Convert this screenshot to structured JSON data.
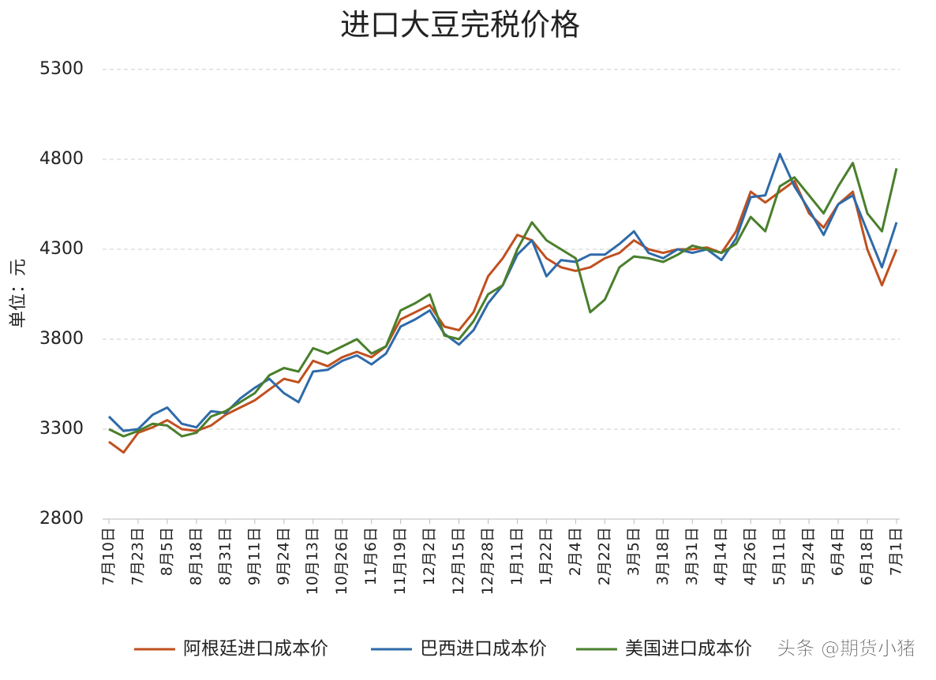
{
  "chart_data": {
    "type": "line",
    "title": "进口大豆完税价格",
    "y_label": "单位：元",
    "watermark": "头条 @期货小猪",
    "categories": [
      "7月10日",
      null,
      "7月23日",
      null,
      "8月5日",
      null,
      "8月18日",
      null,
      "8月31日",
      null,
      "9月11日",
      null,
      "9月24日",
      null,
      "10月13日",
      null,
      "10月26日",
      null,
      "11月6日",
      null,
      "11月19日",
      null,
      "12月2日",
      null,
      "12月15日",
      null,
      "12月28日",
      null,
      "1月11日",
      null,
      "1月22日",
      null,
      "2月4日",
      null,
      "2月22日",
      null,
      "3月5日",
      null,
      "3月18日",
      null,
      "3月31日",
      null,
      "4月14日",
      null,
      "4月26日",
      null,
      "5月11日",
      null,
      "5月24日",
      null,
      "6月4日",
      null,
      "6月18日",
      null,
      "7月1日"
    ],
    "series": [
      {
        "name": "阿根廷进口成本价",
        "color": "#c0501f",
        "values": [
          3230,
          3170,
          3280,
          3310,
          3350,
          3300,
          3290,
          3320,
          3380,
          3420,
          3460,
          3520,
          3580,
          3560,
          3680,
          3650,
          3700,
          3730,
          3700,
          3760,
          3910,
          3950,
          3990,
          3870,
          3850,
          3950,
          4150,
          4250,
          4380,
          4350,
          4250,
          4200,
          4180,
          4200,
          4250,
          4280,
          4350,
          4300,
          4280,
          4300,
          4300,
          4310,
          4280,
          4400,
          4620,
          4560,
          4620,
          4680,
          4500,
          4420,
          4550,
          4620,
          4300,
          4100,
          4300
        ]
      },
      {
        "name": "巴西进口成本价",
        "color": "#2e6aa9",
        "values": [
          3370,
          3290,
          3300,
          3380,
          3420,
          3330,
          3310,
          3400,
          3390,
          3470,
          3530,
          3580,
          3500,
          3450,
          3620,
          3630,
          3680,
          3710,
          3660,
          3720,
          3870,
          3910,
          3960,
          3830,
          3770,
          3850,
          4000,
          4100,
          4270,
          4350,
          4150,
          4240,
          4230,
          4270,
          4270,
          4330,
          4400,
          4280,
          4250,
          4300,
          4280,
          4300,
          4240,
          4360,
          4590,
          4600,
          4830,
          4650,
          4520,
          4380,
          4550,
          4600,
          4400,
          4200,
          4450
        ]
      },
      {
        "name": "美国进口成本价",
        "color": "#4a7f2c",
        "values": [
          3300,
          3260,
          3290,
          3330,
          3320,
          3260,
          3280,
          3370,
          3400,
          3450,
          3500,
          3600,
          3640,
          3620,
          3750,
          3720,
          3760,
          3800,
          3720,
          3760,
          3960,
          4000,
          4050,
          3820,
          3800,
          3900,
          4050,
          4100,
          4300,
          4450,
          4350,
          4300,
          4250,
          3950,
          4020,
          4200,
          4260,
          4250,
          4230,
          4270,
          4320,
          4300,
          4280,
          4330,
          4480,
          4400,
          4650,
          4700,
          4600,
          4500,
          4650,
          4780,
          4500,
          4400,
          4750
        ]
      }
    ],
    "ylim": [
      2800,
      5300
    ],
    "yticks": [
      2800,
      3300,
      3800,
      4300,
      4800,
      5300
    ],
    "grid": true
  }
}
